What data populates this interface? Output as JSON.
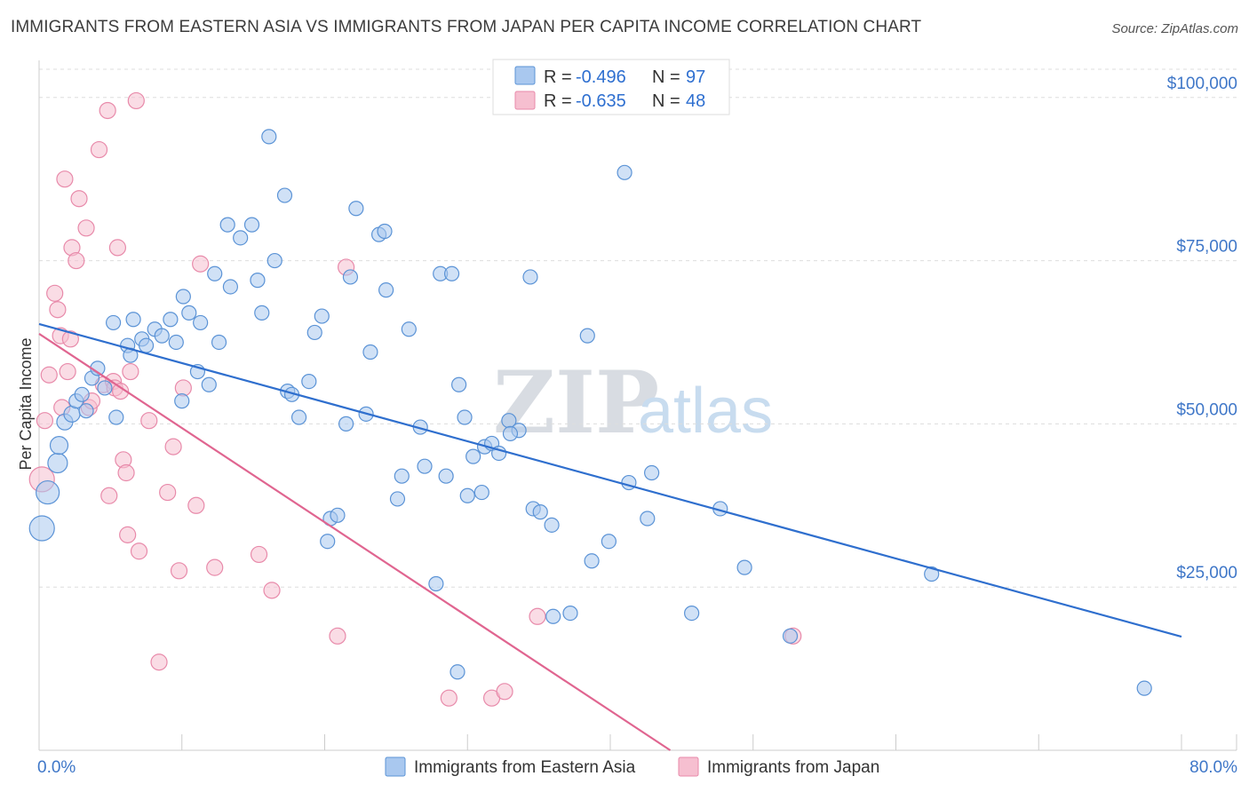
{
  "title": "IMMIGRANTS FROM EASTERN ASIA VS IMMIGRANTS FROM JAPAN PER CAPITA INCOME CORRELATION CHART",
  "source": "Source: ZipAtlas.com",
  "watermark": {
    "zip": "ZIP",
    "atlas": "atlas"
  },
  "colors": {
    "blue_fill": "#a9c8ef",
    "blue_stroke": "#5b93d6",
    "blue_line": "#2f6fce",
    "pink_fill": "#f6bfd0",
    "pink_stroke": "#e88aaa",
    "pink_line": "#e06590",
    "tick_text": "#3f77c8",
    "grid": "#dddddd"
  },
  "legend": {
    "rows": [
      {
        "r_label": "R =",
        "r_value": "-0.496",
        "n_label": "N =",
        "n_value": "97"
      },
      {
        "r_label": "R =",
        "r_value": "-0.635",
        "n_label": "N =",
        "n_value": "48"
      }
    ]
  },
  "chart_data": {
    "type": "scatter",
    "title": "IMMIGRANTS FROM EASTERN ASIA VS IMMIGRANTS FROM JAPAN PER CAPITA INCOME CORRELATION CHART",
    "xlabel": "",
    "ylabel": "Per Capita Income",
    "xlim": [
      0,
      80
    ],
    "ylim": [
      0,
      105000
    ],
    "x_tick_labels": [
      {
        "value": 0,
        "label": "0.0%"
      },
      {
        "value": 80,
        "label": "80.0%"
      }
    ],
    "y_ticks": [
      {
        "value": 25000,
        "label": "$25,000"
      },
      {
        "value": 50000,
        "label": "$50,000"
      },
      {
        "value": 75000,
        "label": "$75,000"
      },
      {
        "value": 100000,
        "label": "$100,000"
      }
    ],
    "grid": true,
    "legend_position": "bottom",
    "series": [
      {
        "name": "Immigrants from Eastern Asia",
        "r": -0.496,
        "n": 97,
        "trend": {
          "x": [
            0,
            80
          ],
          "y": [
            65300,
            17400
          ]
        },
        "points": [
          [
            0.2,
            34000,
            14
          ],
          [
            0.6,
            39500,
            13
          ],
          [
            1.3,
            44000,
            11
          ],
          [
            1.4,
            46700,
            10
          ],
          [
            1.8,
            50300,
            9
          ],
          [
            2.3,
            51500,
            9
          ],
          [
            2.6,
            53500,
            8
          ],
          [
            3.0,
            54500,
            8
          ],
          [
            3.3,
            52000,
            8
          ],
          [
            3.7,
            57000,
            8
          ],
          [
            4.1,
            58500,
            8
          ],
          [
            4.6,
            55500,
            8
          ],
          [
            5.4,
            51000,
            8
          ],
          [
            5.2,
            65500,
            8
          ],
          [
            6.2,
            62000,
            8
          ],
          [
            6.4,
            60500,
            8
          ],
          [
            6.6,
            66000,
            8
          ],
          [
            7.2,
            63000,
            8
          ],
          [
            7.5,
            62000,
            8
          ],
          [
            8.1,
            64500,
            8
          ],
          [
            8.6,
            63500,
            8
          ],
          [
            9.2,
            66000,
            8
          ],
          [
            9.6,
            62500,
            8
          ],
          [
            10.0,
            53500,
            8
          ],
          [
            10.1,
            69500,
            8
          ],
          [
            10.5,
            67000,
            8
          ],
          [
            11.1,
            58000,
            8
          ],
          [
            11.3,
            65500,
            8
          ],
          [
            11.9,
            56000,
            8
          ],
          [
            12.3,
            73000,
            8
          ],
          [
            12.6,
            62500,
            8
          ],
          [
            13.2,
            80500,
            8
          ],
          [
            13.4,
            71000,
            8
          ],
          [
            14.1,
            78500,
            8
          ],
          [
            14.9,
            80500,
            8
          ],
          [
            15.3,
            72000,
            8
          ],
          [
            15.6,
            67000,
            8
          ],
          [
            16.1,
            94000,
            8
          ],
          [
            16.5,
            75000,
            8
          ],
          [
            17.2,
            85000,
            8
          ],
          [
            17.4,
            55000,
            8
          ],
          [
            17.7,
            54500,
            8
          ],
          [
            18.2,
            51000,
            8
          ],
          [
            18.9,
            56500,
            8
          ],
          [
            19.3,
            64000,
            8
          ],
          [
            19.8,
            66500,
            8
          ],
          [
            20.4,
            35500,
            8
          ],
          [
            20.2,
            32000,
            8
          ],
          [
            20.9,
            36000,
            8
          ],
          [
            21.5,
            50000,
            8
          ],
          [
            21.8,
            72500,
            8
          ],
          [
            22.2,
            83000,
            8
          ],
          [
            22.9,
            51500,
            8
          ],
          [
            23.2,
            61000,
            8
          ],
          [
            23.8,
            79000,
            8
          ],
          [
            24.2,
            79500,
            8
          ],
          [
            24.3,
            70500,
            8
          ],
          [
            25.1,
            38500,
            8
          ],
          [
            25.4,
            42000,
            8
          ],
          [
            25.9,
            64500,
            8
          ],
          [
            26.7,
            49500,
            8
          ],
          [
            27.0,
            43500,
            8
          ],
          [
            27.8,
            25500,
            8
          ],
          [
            28.1,
            73000,
            8
          ],
          [
            28.9,
            73000,
            8
          ],
          [
            29.4,
            56000,
            8
          ],
          [
            29.8,
            51000,
            8
          ],
          [
            30.0,
            39000,
            8
          ],
          [
            30.4,
            45000,
            8
          ],
          [
            31.0,
            39500,
            8
          ],
          [
            31.2,
            46500,
            8
          ],
          [
            31.7,
            47000,
            8
          ],
          [
            32.2,
            45500,
            8
          ],
          [
            32.9,
            50500,
            8
          ],
          [
            33.6,
            49000,
            8
          ],
          [
            34.4,
            72500,
            8
          ],
          [
            34.6,
            37000,
            8
          ],
          [
            35.1,
            36500,
            8
          ],
          [
            35.9,
            34500,
            8
          ],
          [
            37.2,
            21000,
            8
          ],
          [
            38.4,
            63500,
            8
          ],
          [
            38.7,
            29000,
            8
          ],
          [
            39.9,
            32000,
            8
          ],
          [
            41.0,
            88500,
            8
          ],
          [
            41.3,
            41000,
            8
          ],
          [
            42.6,
            35500,
            8
          ],
          [
            42.9,
            42500,
            8
          ],
          [
            45.7,
            21000,
            8
          ],
          [
            47.7,
            37000,
            8
          ],
          [
            49.4,
            28000,
            8
          ],
          [
            52.6,
            17500,
            8
          ],
          [
            62.5,
            27000,
            8
          ],
          [
            77.4,
            9500,
            8
          ],
          [
            29.3,
            12000,
            8
          ],
          [
            28.5,
            42000,
            8
          ],
          [
            33.0,
            48500,
            8
          ],
          [
            36.0,
            20500,
            8
          ]
        ]
      },
      {
        "name": "Immigrants from Japan",
        "r": -0.635,
        "n": 48,
        "trend": {
          "x": [
            0,
            44.2
          ],
          "y": [
            63800,
            0
          ]
        },
        "points": [
          [
            0.2,
            41500,
            14
          ],
          [
            0.4,
            50500,
            9
          ],
          [
            0.7,
            57500,
            9
          ],
          [
            1.1,
            70000,
            9
          ],
          [
            1.3,
            67500,
            9
          ],
          [
            1.5,
            63500,
            9
          ],
          [
            1.6,
            52500,
            9
          ],
          [
            1.8,
            87500,
            9
          ],
          [
            2.0,
            58000,
            9
          ],
          [
            2.2,
            63000,
            9
          ],
          [
            2.3,
            77000,
            9
          ],
          [
            2.6,
            75000,
            9
          ],
          [
            2.8,
            84500,
            9
          ],
          [
            3.3,
            80000,
            9
          ],
          [
            3.5,
            52500,
            9
          ],
          [
            3.7,
            53500,
            9
          ],
          [
            4.2,
            92000,
            9
          ],
          [
            4.5,
            56000,
            9
          ],
          [
            4.8,
            98000,
            9
          ],
          [
            4.9,
            39000,
            9
          ],
          [
            5.2,
            56500,
            9
          ],
          [
            5.3,
            55500,
            9
          ],
          [
            5.5,
            77000,
            9
          ],
          [
            5.7,
            55000,
            9
          ],
          [
            5.9,
            44500,
            9
          ],
          [
            6.1,
            42500,
            9
          ],
          [
            6.2,
            33000,
            9
          ],
          [
            6.4,
            58000,
            9
          ],
          [
            6.8,
            99500,
            9
          ],
          [
            7.0,
            30500,
            9
          ],
          [
            7.7,
            50500,
            9
          ],
          [
            8.4,
            13500,
            9
          ],
          [
            9.0,
            39500,
            9
          ],
          [
            9.4,
            46500,
            9
          ],
          [
            9.8,
            27500,
            9
          ],
          [
            10.1,
            55500,
            9
          ],
          [
            11.0,
            37500,
            9
          ],
          [
            11.3,
            74500,
            9
          ],
          [
            12.3,
            28000,
            9
          ],
          [
            15.4,
            30000,
            9
          ],
          [
            16.3,
            24500,
            9
          ],
          [
            20.9,
            17500,
            9
          ],
          [
            21.5,
            74000,
            9
          ],
          [
            28.7,
            8000,
            9
          ],
          [
            31.7,
            8000,
            9
          ],
          [
            32.6,
            9000,
            9
          ],
          [
            34.9,
            20500,
            9
          ],
          [
            52.8,
            17500,
            9
          ]
        ]
      }
    ]
  }
}
